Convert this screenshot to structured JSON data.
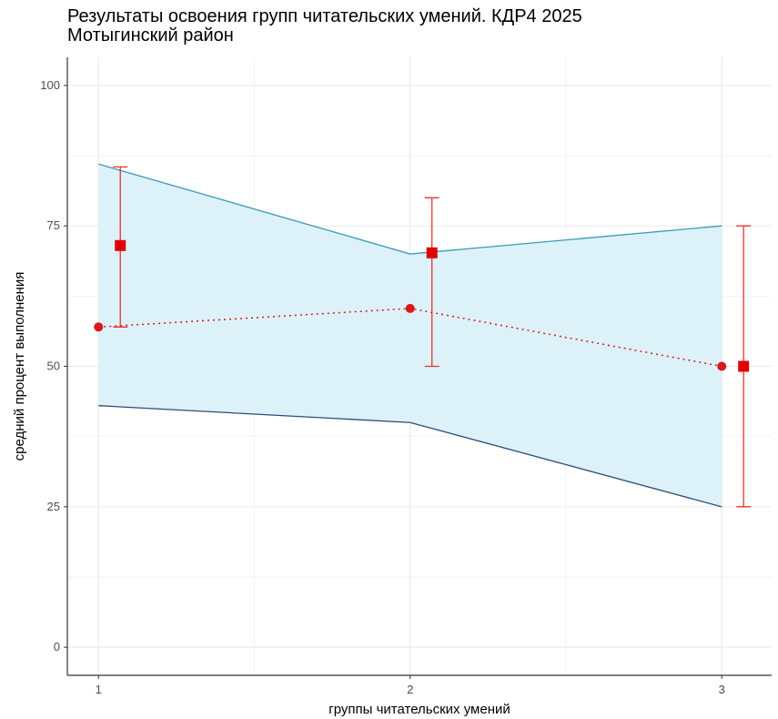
{
  "header": {
    "title": "Результаты освоения групп читательских умений. КДР4 2025",
    "subtitle": "Мотыгинский район"
  },
  "chart_data": {
    "type": "line",
    "title": "Результаты освоения групп читательских умений. КДР4 2025",
    "subtitle": "Мотыгинский район",
    "xlabel": "группы читательских умений",
    "ylabel": "средний процент выполнения",
    "categories": [
      "1",
      "2",
      "3"
    ],
    "x": [
      1,
      2,
      3
    ],
    "xlim": [
      0.9,
      3.16
    ],
    "ylim": [
      -5,
      105
    ],
    "y_ticks": [
      0,
      25,
      50,
      75,
      100
    ],
    "x_ticks": [
      1,
      2,
      3
    ],
    "grid": true,
    "band": {
      "upper": [
        86,
        70,
        75
      ],
      "lower": [
        43,
        40,
        25
      ]
    },
    "points": {
      "values": [
        57,
        60.3,
        50
      ]
    },
    "errorbars": {
      "x": [
        1.07,
        2.07,
        3.07
      ],
      "mean": [
        71.5,
        70.2,
        50
      ],
      "low": [
        57,
        50,
        25
      ],
      "high": [
        85.5,
        80,
        75
      ]
    },
    "colors": {
      "band_fill": "#dcf2f8",
      "band_upper": "#3a9bb5",
      "band_lower": "#2c4c7a",
      "points": "#d7191c",
      "errorbars": "#e8322e"
    }
  }
}
